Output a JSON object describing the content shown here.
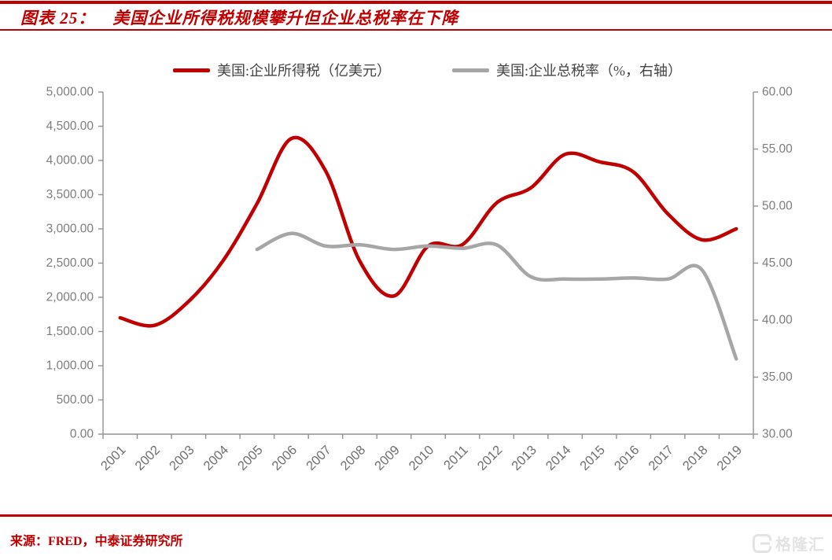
{
  "header": {
    "title": "图表 25：　美国企业所得税规模攀升但企业总税率在下降"
  },
  "footer": {
    "source": "来源：FRED，中泰证券研究所"
  },
  "watermark": {
    "brand": "格隆汇"
  },
  "colors": {
    "accent_red": "#c00000",
    "series_red": "#c00000",
    "series_gray": "#a6a6a6",
    "axis_line": "#919191",
    "axis_label": "#7d7d7d",
    "legend_text": "#444444"
  },
  "chart_data": {
    "type": "line",
    "title": "美国企业所得税规模攀升但企业总税率在下降",
    "smooth": true,
    "grid": false,
    "legend_position": "top",
    "categories": [
      "2001",
      "2002",
      "2003",
      "2004",
      "2005",
      "2006",
      "2007",
      "2008",
      "2009",
      "2010",
      "2011",
      "2012",
      "2013",
      "2014",
      "2015",
      "2016",
      "2017",
      "2018",
      "2019"
    ],
    "series": [
      {
        "name": "美国:企业所得税（亿美元）",
        "yaxis": "left",
        "color": "#c00000",
        "values": [
          1700,
          1590,
          1940,
          2530,
          3370,
          4320,
          3850,
          2530,
          2020,
          2750,
          2770,
          3380,
          3600,
          4090,
          3980,
          3830,
          3220,
          2840,
          3000
        ]
      },
      {
        "name": "美国:企业总税率（%，右轴）",
        "yaxis": "right",
        "color": "#a6a6a6",
        "values": [
          null,
          null,
          null,
          null,
          46.2,
          47.6,
          46.5,
          46.6,
          46.2,
          46.5,
          46.3,
          46.6,
          43.8,
          43.6,
          43.6,
          43.7,
          43.6,
          44.4,
          36.6
        ]
      }
    ],
    "left_axis": {
      "min": 0,
      "max": 5000,
      "step": 500,
      "tick_labels": [
        "5,000.00",
        "4,500.00",
        "4,000.00",
        "3,500.00",
        "3,000.00",
        "2,500.00",
        "2,000.00",
        "1,500.00",
        "1,000.00",
        "500.00",
        "0.00"
      ]
    },
    "right_axis": {
      "min": 30,
      "max": 60,
      "step": 5,
      "tick_labels": [
        "60.00",
        "55.00",
        "50.00",
        "45.00",
        "40.00",
        "35.00",
        "30.00"
      ]
    }
  }
}
